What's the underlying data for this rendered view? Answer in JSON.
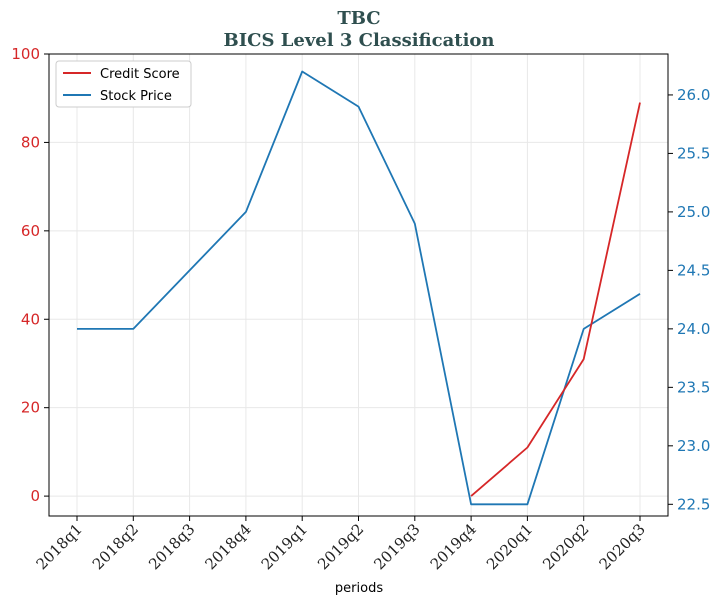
{
  "chart_data": {
    "type": "line",
    "title": "TBC",
    "subtitle": "BICS Level 3 Classification",
    "xlabel": "periods",
    "categories": [
      "2018q1",
      "2018q2",
      "2018q3",
      "2018q4",
      "2019q1",
      "2019q2",
      "2019q3",
      "2019q4",
      "2020q1",
      "2020q2",
      "2020q3"
    ],
    "y_left": {
      "ylim": [
        -4.5,
        100
      ],
      "ticks": [
        "0",
        "20",
        "40",
        "60",
        "80",
        "100"
      ],
      "color": "#d62728"
    },
    "y_right": {
      "ylim": [
        22.4,
        26.35
      ],
      "ticks": [
        "22.5",
        "23.0",
        "23.5",
        "24.0",
        "24.5",
        "25.0",
        "25.5",
        "26.0"
      ],
      "color": "#1f77b4"
    },
    "grid": true,
    "legend": "top-left",
    "series": [
      {
        "name": "Credit Score",
        "axis": "left",
        "color": "#d62728",
        "values": [
          null,
          null,
          null,
          null,
          null,
          null,
          null,
          0,
          11,
          31,
          89
        ]
      },
      {
        "name": "Stock Price",
        "axis": "right",
        "color": "#1f77b4",
        "values": [
          24.0,
          24.0,
          24.5,
          25.0,
          26.2,
          25.9,
          24.9,
          22.5,
          22.5,
          24.0,
          24.3
        ]
      }
    ]
  }
}
